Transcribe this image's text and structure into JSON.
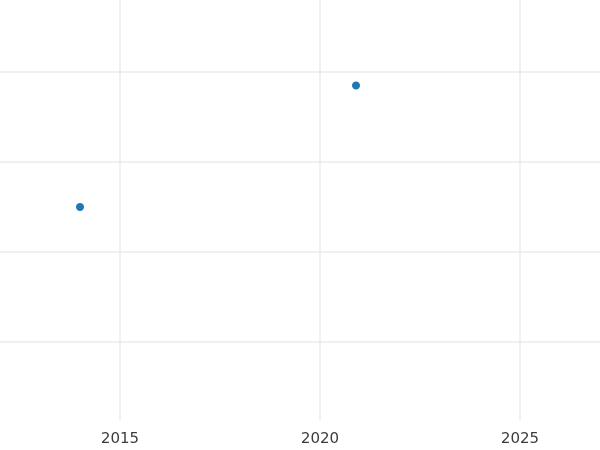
{
  "chart_data": {
    "type": "scatter",
    "title": "",
    "xlabel": "",
    "ylabel": "",
    "x_ticks": [
      2015,
      2020,
      2025
    ],
    "xlim": [
      2012,
      2027
    ],
    "ylim": [
      0,
      1
    ],
    "y_unit": "normalized (no y-axis tick labels visible in crop)",
    "grid": true,
    "h_gridlines_y": [
      0.24,
      0.44,
      0.64,
      0.84
    ],
    "points": [
      {
        "x": 2014,
        "y": 0.54
      },
      {
        "x": 2020.9,
        "y": 0.81
      }
    ],
    "legend": "none",
    "marker_color": "#1f77b4",
    "grid_color": "#e2e2e2",
    "background_color": "#ffffff",
    "tick_label_color": "#3b3b3b",
    "tick_font_size": 15
  }
}
